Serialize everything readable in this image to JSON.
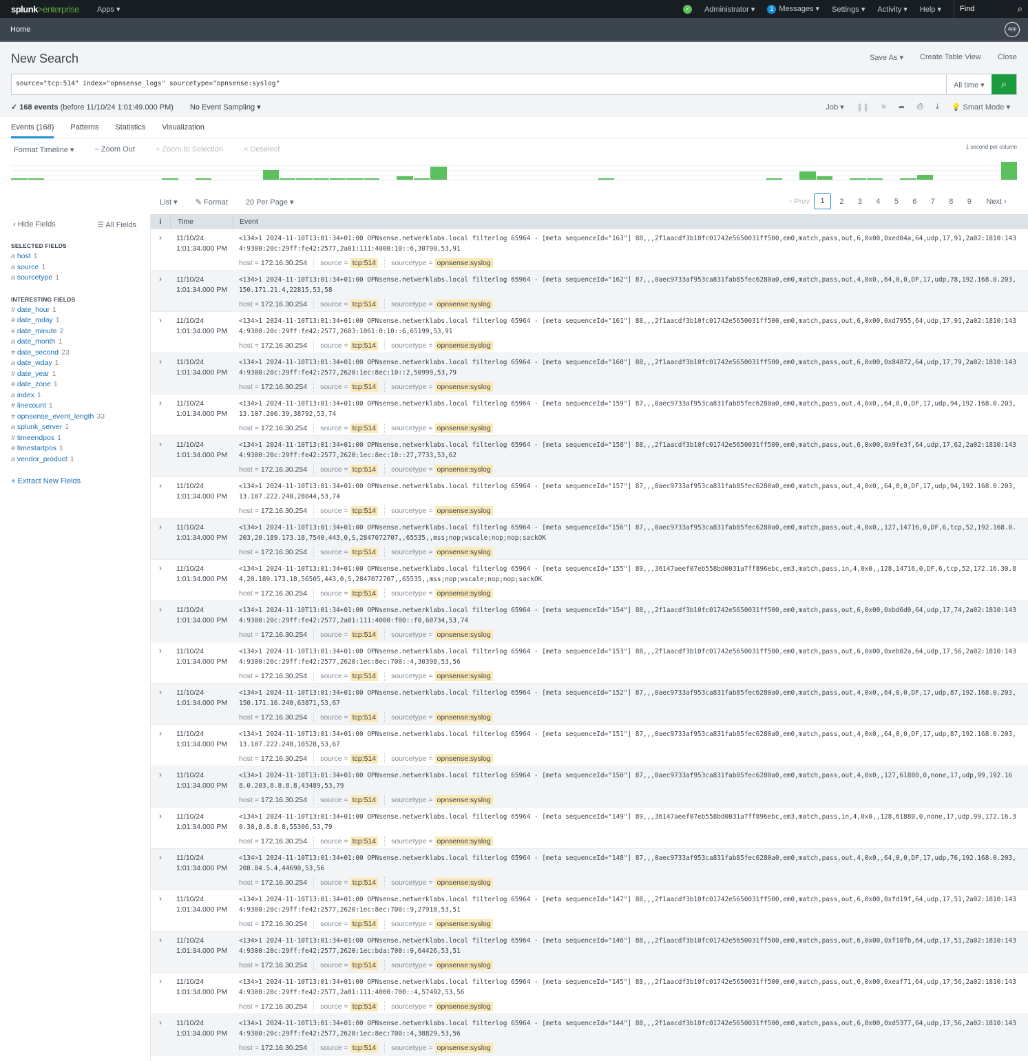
{
  "topbar": {
    "logo_main": "splunk",
    "logo_sub": ">enterprise",
    "apps": "Apps ▾",
    "user": "Administrator ▾",
    "messages_count": "1",
    "messages": "Messages ▾",
    "settings": "Settings ▾",
    "activity": "Activity ▾",
    "help": "Help ▾",
    "find": "Find"
  },
  "appbar": {
    "home": "Home",
    "app_badge": "App"
  },
  "header": {
    "title": "New Search",
    "save_as": "Save As ▾",
    "create_table_view": "Create Table View",
    "close": "Close"
  },
  "search": {
    "query": "source=\"tcp:514\" index=\"opnsense_logs\" sourcetype=\"opnsense:syslog\"",
    "time_range": "All time ▾"
  },
  "status": {
    "events": "✓ 168 events",
    "before": "(before 11/10/24 1:01:49.000 PM)",
    "sampling": "No Event Sampling ▾",
    "job": "Job ▾",
    "mode": "Smart Mode ▾"
  },
  "tabs": [
    "Events (168)",
    "Patterns",
    "Statistics",
    "Visualization"
  ],
  "timeline": {
    "format": "Format Timeline ▾",
    "zoom_out": "− Zoom Out",
    "zoom_sel": "+ Zoom to Selection",
    "deselect": "× Deselect",
    "scale": "1 second per column",
    "color": "#5cc05c",
    "counts": [
      1,
      1,
      0,
      0,
      0,
      0,
      0,
      0,
      0,
      1,
      0,
      1,
      0,
      0,
      0,
      12,
      2,
      1,
      2,
      1,
      2,
      2,
      0,
      4,
      2,
      17,
      0,
      0,
      0,
      0,
      0,
      0,
      0,
      0,
      0,
      1,
      0,
      0,
      0,
      0,
      0,
      0,
      0,
      0,
      0,
      1,
      0,
      11,
      4,
      0,
      1,
      2,
      0,
      1,
      6,
      0,
      0,
      0,
      0,
      23
    ]
  },
  "controls": {
    "list": "List ▾",
    "format": "✎ Format",
    "per_page": "20 Per Page ▾"
  },
  "pager": {
    "prev": "‹ Prev",
    "pages": [
      "1",
      "2",
      "3",
      "4",
      "5",
      "6",
      "7",
      "8",
      "9"
    ],
    "current": "1",
    "next": "Next ›"
  },
  "sidebar": {
    "hide": "‹ Hide Fields",
    "all": "☰ All Fields",
    "selected_title": "SELECTED FIELDS",
    "interesting_title": "INTERESTING FIELDS",
    "extract": "+ Extract New Fields",
    "selected": [
      {
        "t": "a",
        "n": "host",
        "c": "1"
      },
      {
        "t": "a",
        "n": "source",
        "c": "1"
      },
      {
        "t": "a",
        "n": "sourcetype",
        "c": "1"
      }
    ],
    "interesting": [
      {
        "t": "#",
        "n": "date_hour",
        "c": "1"
      },
      {
        "t": "#",
        "n": "date_mday",
        "c": "1"
      },
      {
        "t": "#",
        "n": "date_minute",
        "c": "2"
      },
      {
        "t": "a",
        "n": "date_month",
        "c": "1"
      },
      {
        "t": "#",
        "n": "date_second",
        "c": "23"
      },
      {
        "t": "a",
        "n": "date_wday",
        "c": "1"
      },
      {
        "t": "#",
        "n": "date_year",
        "c": "1"
      },
      {
        "t": "#",
        "n": "date_zone",
        "c": "1"
      },
      {
        "t": "a",
        "n": "index",
        "c": "1"
      },
      {
        "t": "#",
        "n": "linecount",
        "c": "1"
      },
      {
        "t": "#",
        "n": "opnsense_event_length",
        "c": "33"
      },
      {
        "t": "a",
        "n": "splunk_server",
        "c": "1"
      },
      {
        "t": "#",
        "n": "timeendpos",
        "c": "1"
      },
      {
        "t": "#",
        "n": "timestartpos",
        "c": "1"
      },
      {
        "t": "a",
        "n": "vendor_product",
        "c": "1"
      }
    ]
  },
  "table": {
    "col_i": "i",
    "col_time": "Time",
    "col_event": "Event",
    "date": "11/10/24",
    "time": "1:01:34.000 PM",
    "prefix": "<134>1 2024-11-10T13:01:34+01:00 OPNsense.netwerklabs.local filterlog 65964 - ",
    "host_k": "host =",
    "host_v": "172.16.30.254",
    "source_k": "source =",
    "source_v": "tcp:514",
    "st_k": "sourcetype =",
    "st_v": "opnsense:syslog",
    "events": [
      "[meta sequenceId=\"163\"] 88,,,2f1aacdf3b10fc01742e5650031ff500,em0,match,pass,out,6,0x00,0xed04a,64,udp,17,91,2a02:1810:1434:9300:20c:29ff:fe42:2577,2a01:111:4000:10::6,30790,53,91",
      "[meta sequenceId=\"162\"] 87,,,0aec9733af953ca831fab85fec6280a0,em0,match,pass,out,4,0x0,,64,0,0,DF,17,udp,78,192.168.0.203,150.171.21.4,22815,53,58",
      "[meta sequenceId=\"161\"] 88,,,2f1aacdf3b10fc01742e5650031ff500,em0,match,pass,out,6,0x00,0xd7955,64,udp,17,91,2a02:1810:1434:9300:20c:29ff:fe42:2577,2603:1061:0:10::6,65199,53,91",
      "[meta sequenceId=\"160\"] 88,,,2f1aacdf3b10fc01742e5650031ff500,em0,match,pass,out,6,0x00,0x84872,64,udp,17,79,2a02:1810:1434:9300:20c:29ff:fe42:2577,2620:1ec:8ec:10::2,50999,53,79",
      "[meta sequenceId=\"159\"] 87,,,0aec9733af953ca831fab85fec6280a0,em0,match,pass,out,4,0x0,,64,0,0,DF,17,udp,94,192.168.0.203,13.107.206.39,38792,53,74",
      "[meta sequenceId=\"158\"] 88,,,2f1aacdf3b10fc01742e5650031ff500,em0,match,pass,out,6,0x00,0x9fe3f,64,udp,17,62,2a02:1810:1434:9300:20c:29ff:fe42:2577,2620:1ec:8ec:10::27,7733,53,62",
      "[meta sequenceId=\"157\"] 87,,,0aec9733af953ca831fab85fec6280a0,em0,match,pass,out,4,0x0,,64,0,0,DF,17,udp,94,192.168.0.203,13.107.222.240,28044,53,74",
      "[meta sequenceId=\"156\"] 87,,,0aec9733af953ca831fab85fec6280a0,em0,match,pass,out,4,0x0,,127,14716,0,DF,6,tcp,52,192.168.0.203,20.189.173.18,7540,443,0,S,2847072707,,65535,,mss;nop;wscale;nop;nop;sackOK",
      "[meta sequenceId=\"155\"] 89,,,36147aeef07eb558bd0031a7ff896ebc,em3,match,pass,in,4,0x0,,128,14716,0,DF,6,tcp,52,172.16.30.84,20.189.173.18,56505,443,0,S,2847072707,,65535,,mss;nop;wscale;nop;nop;sackOK",
      "[meta sequenceId=\"154\"] 88,,,2f1aacdf3b10fc01742e5650031ff500,em0,match,pass,out,6,0x00,0xbd6d0,64,udp,17,74,2a02:1810:1434:9300:20c:29ff:fe42:2577,2a01:111:4000:f00::f0,60734,53,74",
      "[meta sequenceId=\"153\"] 88,,,2f1aacdf3b10fc01742e5650031ff500,em0,match,pass,out,6,0x00,0xeb02a,64,udp,17,56,2a02:1810:1434:9300:20c:29ff:fe42:2577,2620:1ec:8ec:700::4,30398,53,56",
      "[meta sequenceId=\"152\"] 87,,,0aec9733af953ca831fab85fec6280a0,em0,match,pass,out,4,0x0,,64,0,0,DF,17,udp,87,192.168.0.203,150.171.16.240,63871,53,67",
      "[meta sequenceId=\"151\"] 87,,,0aec9733af953ca831fab85fec6280a0,em0,match,pass,out,4,0x0,,64,0,0,DF,17,udp,87,192.168.0.203,13.107.222.240,10528,53,67",
      "[meta sequenceId=\"150\"] 87,,,0aec9733af953ca831fab85fec6280a0,em0,match,pass,out,4,0x0,,127,61880,0,none,17,udp,99,192.168.0.203,8.8.8.8,43489,53,79",
      "[meta sequenceId=\"149\"] 89,,,36147aeef07eb558bd0031a7ff896ebc,em3,match,pass,in,4,0x0,,128,61880,0,none,17,udp,99,172.16.30.30,8.8.8.8,55306,53,79",
      "[meta sequenceId=\"148\"] 87,,,0aec9733af953ca831fab85fec6280a0,em0,match,pass,out,4,0x0,,64,0,0,DF,17,udp,76,192.168.0.203,208.84.5.4,44690,53,56",
      "[meta sequenceId=\"147\"] 88,,,2f1aacdf3b10fc01742e5650031ff500,em0,match,pass,out,6,0x00,0xfd19f,64,udp,17,51,2a02:1810:1434:9300:20c:29ff:fe42:2577,2620:1ec:8ec:700::9,27918,53,51",
      "[meta sequenceId=\"146\"] 88,,,2f1aacdf3b10fc01742e5650031ff500,em0,match,pass,out,6,0x00,0xf10fb,64,udp,17,51,2a02:1810:1434:9300:20c:29ff:fe42:2577,2620:1ec:bda:700::9,64426,53,51",
      "[meta sequenceId=\"145\"] 88,,,2f1aacdf3b10fc01742e5650031ff500,em0,match,pass,out,6,0x00,0xeaf71,64,udp,17,56,2a02:1810:1434:9300:20c:29ff:fe42:2577,2a01:111:4000:700::4,57492,53,56",
      "[meta sequenceId=\"144\"] 88,,,2f1aacdf3b10fc01742e5650031ff500,em0,match,pass,out,6,0x00,0xd5377,64,udp,17,56,2a02:1810:1434:9300:20c:29ff:fe42:2577,2620:1ec:8ec:700::4,38829,53,56"
    ]
  },
  "colors": {
    "accent": "#1a8fd9",
    "search_button": "#1a9c3e",
    "highlight": "#fbe9b8"
  }
}
